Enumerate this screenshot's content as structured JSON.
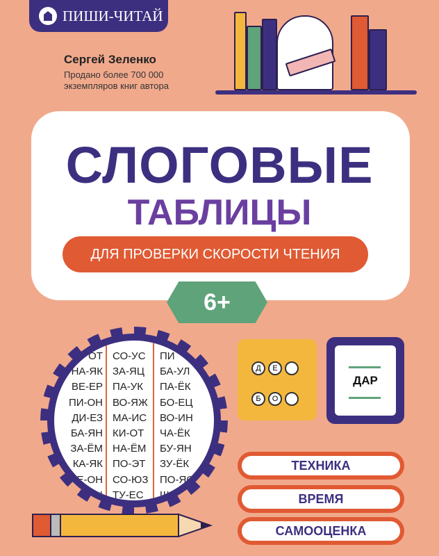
{
  "publisher": "ПИШИ-ЧИТАЙ",
  "author": "Сергей Зеленко",
  "sold": "Продано более 700 000 экземпляров книг автора",
  "title_line1": "СЛОГОВЫЕ",
  "title_line2": "ТАБЛИЦЫ",
  "subtitle": "ДЛЯ ПРОВЕРКИ СКОРОСТИ ЧТЕНИЯ",
  "age": "6+",
  "table": {
    "col1": [
      "ОТ",
      "НА-ЯК",
      "ВЕ-ЕР",
      "ПИ-ОН",
      "ДИ-ЕЗ",
      "БА-ЯН",
      "ЗА-ЁМ",
      "КА-ЯК",
      "Е-ОН",
      "ЯЦ"
    ],
    "col2": [
      "СО-УС",
      "ЗА-ЯЦ",
      "ПА-УК",
      "ВО-ЯЖ",
      "МА-ИС",
      "КИ-ОТ",
      "НА-ЁМ",
      "ПО-ЭТ",
      "СО-ЮЗ",
      "ТУ-ЕС"
    ],
    "col3": [
      "ПИ",
      "БА-УЛ",
      "ПА-ЁК",
      "БО-ЕЦ",
      "ВО-ИН",
      "ЧА-ЁК",
      "БУ-ЯН",
      "ЗУ-ЁК",
      "ПО-ЯС",
      "ЩИ"
    ]
  },
  "card_letters": {
    "top": [
      "Д",
      "Е"
    ],
    "bottom": [
      "Б",
      "О"
    ]
  },
  "card_word": "ДАР",
  "tags": [
    "ТЕХНИКА",
    "ВРЕМЯ",
    "САМООЦЕНКА"
  ],
  "colors": {
    "background": "#f1a98c",
    "navy": "#3d2f80",
    "purple": "#6b3fa0",
    "orange": "#e05a33",
    "green": "#5fa37a",
    "yellow": "#f4b73d"
  }
}
